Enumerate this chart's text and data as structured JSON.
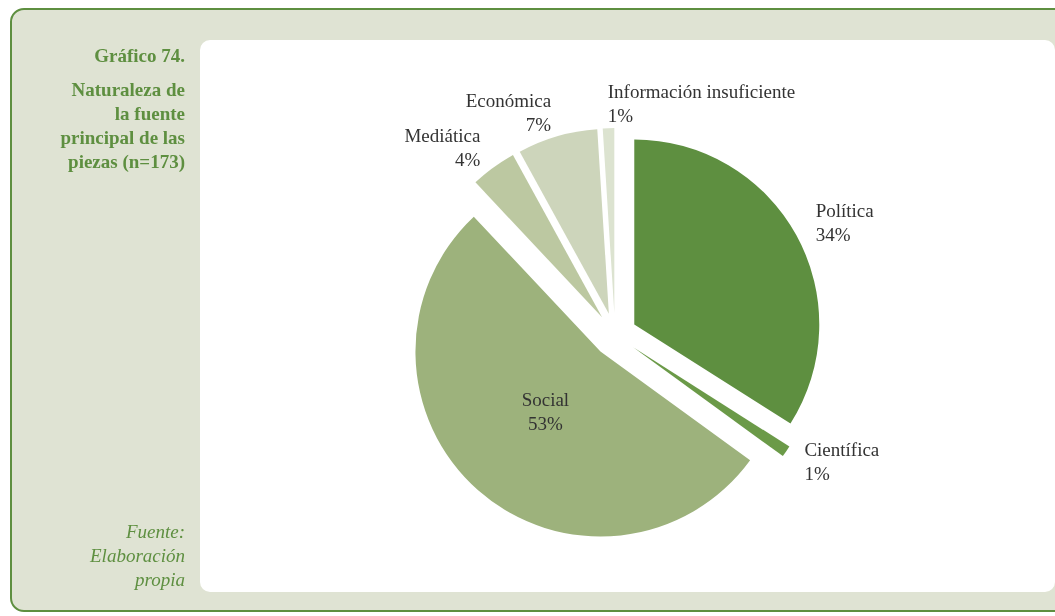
{
  "chart_data": {
    "type": "pie",
    "title": "Gráfico 74.",
    "subtitle": "Naturaleza de la fuente principal de las piezas (n=173)",
    "annotations": [
      "Fuente: Elaboración propia"
    ],
    "categories": [
      "Política",
      "Científica",
      "Social",
      "Mediática",
      "Económica",
      "Información insuficiente"
    ],
    "values": [
      34,
      1,
      53,
      4,
      7,
      1
    ],
    "value_labels": [
      "34%",
      "1%",
      "53%",
      "4%",
      "7%",
      "1%"
    ],
    "colors": [
      "#5e8f40",
      "#6b9a48",
      "#9db27c",
      "#bcc8a1",
      "#cdd5bb",
      "#dce3d0"
    ]
  }
}
